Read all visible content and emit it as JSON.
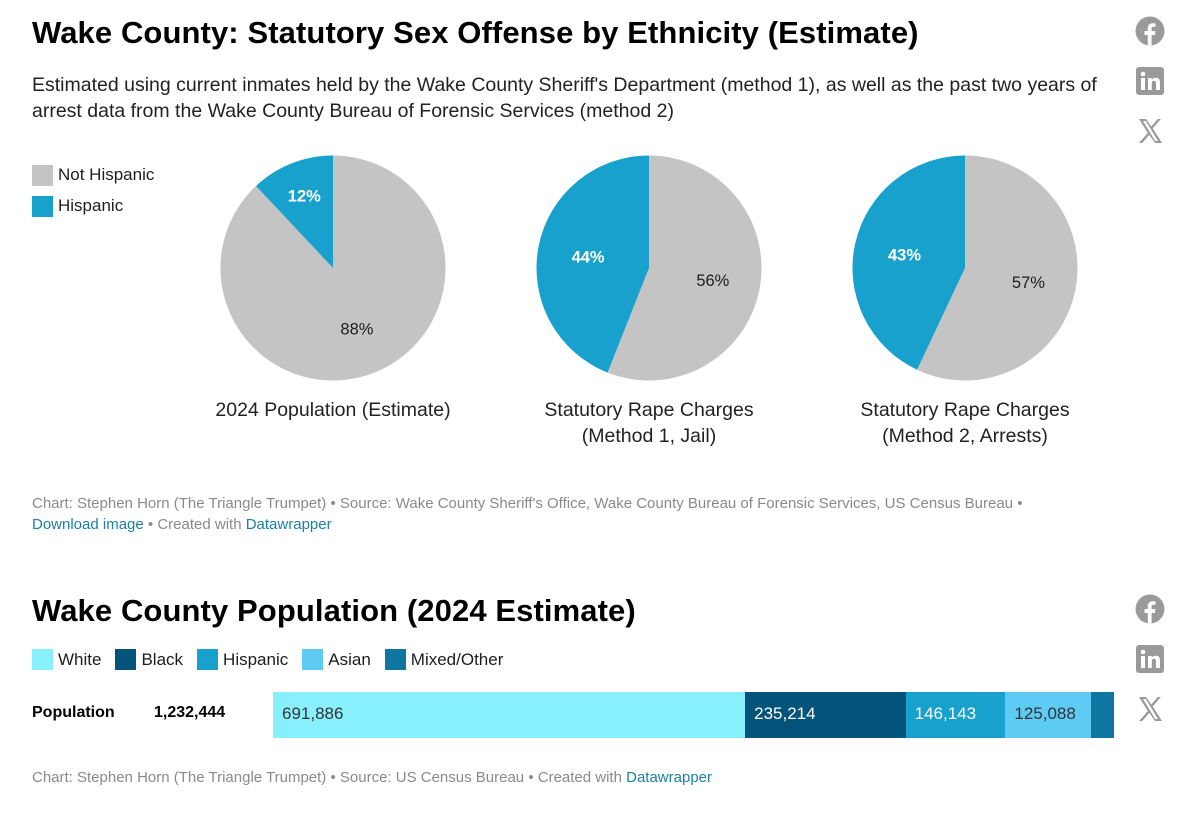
{
  "section1": {
    "title": "Wake County: Statutory Sex Offense by Ethnicity (Estimate)",
    "subtitle": "Estimated using current inmates held by the Wake County Sheriff's Department (method 1), as well as the past two years of arrest data from the Wake County Bureau of Forensic Services (method 2)",
    "legend": [
      {
        "label": "Not Hispanic",
        "color": "#c4c4c4"
      },
      {
        "label": "Hispanic",
        "color": "#18a1cd"
      }
    ],
    "footer": {
      "text": "Chart: Stephen Horn (The Triangle Trumpet) • Source: Wake County Sheriff's Office, Wake County Bureau of Forensic Services, US Census Bureau •",
      "download": "Download image",
      "created": "• Created with",
      "tool": "Datawrapper"
    }
  },
  "chart_data": [
    {
      "type": "pie",
      "title": "2024 Population (Estimate)",
      "slices": [
        {
          "label": "Hispanic",
          "value": 12,
          "text": "12%",
          "color": "#18a1cd"
        },
        {
          "label": "Not Hispanic",
          "value": 88,
          "text": "88%",
          "color": "#c4c4c4"
        }
      ]
    },
    {
      "type": "pie",
      "title": "Statutory Rape Charges (Method 1, Jail)",
      "title_lines": [
        "Statutory Rape Charges",
        "(Method 1, Jail)"
      ],
      "slices": [
        {
          "label": "Hispanic",
          "value": 44,
          "text": "44%",
          "color": "#18a1cd"
        },
        {
          "label": "Not Hispanic",
          "value": 56,
          "text": "56%",
          "color": "#c4c4c4"
        }
      ]
    },
    {
      "type": "pie",
      "title": "Statutory Rape Charges (Method 2, Arrests)",
      "title_lines": [
        "Statutory Rape Charges",
        "(Method 2, Arrests)"
      ],
      "slices": [
        {
          "label": "Hispanic",
          "value": 43,
          "text": "43%",
          "color": "#18a1cd"
        },
        {
          "label": "Not Hispanic",
          "value": 57,
          "text": "57%",
          "color": "#c4c4c4"
        }
      ]
    },
    {
      "type": "bar",
      "orientation": "horizontal-stacked",
      "title": "Wake County Population (2024 Estimate)",
      "categories": [
        "Population"
      ],
      "total": "1,232,444",
      "series": [
        {
          "name": "White",
          "values": [
            691886
          ],
          "text": "691,886",
          "color": "#88f0fc"
        },
        {
          "name": "Black",
          "values": [
            235214
          ],
          "text": "235,214",
          "color": "#04537a"
        },
        {
          "name": "Hispanic",
          "values": [
            146143
          ],
          "text": "146,143",
          "color": "#18a1cd"
        },
        {
          "name": "Asian",
          "values": [
            125088
          ],
          "text": "125,088",
          "color": "#5ecbf4"
        },
        {
          "name": "Mixed/Other",
          "values": [
            34113
          ],
          "text": "",
          "color": "#0e76a0"
        }
      ]
    }
  ],
  "section2": {
    "title": "Wake County Population (2024 Estimate)",
    "row_label": "Population",
    "total": "1,232,444",
    "footer": {
      "text": "Chart: Stephen Horn (The Triangle Trumpet) • Source: US Census Bureau • Created with",
      "tool": "Datawrapper"
    }
  },
  "social": [
    "facebook-icon",
    "linkedin-icon",
    "x-icon"
  ],
  "colors": {
    "gray": "#c4c4c4",
    "teal": "#18a1cd",
    "icon": "#9a9a9a",
    "link": "#1d81a2"
  }
}
